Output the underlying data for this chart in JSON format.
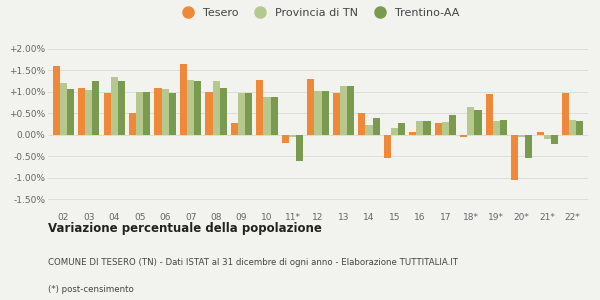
{
  "categories": [
    "02",
    "03",
    "04",
    "05",
    "06",
    "07",
    "08",
    "09",
    "10",
    "11*",
    "12",
    "13",
    "14",
    "15",
    "16",
    "17",
    "18*",
    "19*",
    "20*",
    "21*",
    "22*"
  ],
  "tesero": [
    1.6,
    1.1,
    0.98,
    0.5,
    1.08,
    1.65,
    1.0,
    0.28,
    1.28,
    -0.18,
    1.3,
    0.98,
    0.5,
    -0.55,
    0.07,
    0.28,
    -0.05,
    0.95,
    -1.05,
    0.07,
    0.98
  ],
  "provincia": [
    1.2,
    1.05,
    1.35,
    1.0,
    1.07,
    1.27,
    1.25,
    0.97,
    0.87,
    -0.05,
    1.03,
    1.13,
    0.22,
    0.15,
    0.32,
    0.3,
    0.65,
    0.32,
    -0.05,
    -0.1,
    0.35
  ],
  "trentino": [
    1.07,
    1.25,
    1.25,
    1.0,
    0.97,
    1.25,
    1.1,
    0.97,
    0.87,
    -0.6,
    1.03,
    1.13,
    0.38,
    0.28,
    0.32,
    0.45,
    0.58,
    0.35,
    -0.55,
    -0.22,
    0.33
  ],
  "tesero_color": "#f0883a",
  "provincia_color": "#b5c98e",
  "trentino_color": "#7a9a50",
  "bg_color": "#f2f2ee",
  "grid_color": "#ddddda",
  "title": "Variazione percentuale della popolazione",
  "subtitle": "COMUNE DI TESERO (TN) - Dati ISTAT al 31 dicembre di ogni anno - Elaborazione TUTTITALIA.IT",
  "footnote": "(*) post-censimento",
  "ylim": [
    -1.75,
    2.3
  ],
  "yticks": [
    -1.5,
    -1.0,
    -0.5,
    0.0,
    0.5,
    1.0,
    1.5,
    2.0
  ],
  "ytick_labels": [
    "-1.50%",
    "-1.00%",
    "-0.50%",
    "0.00%",
    "+0.50%",
    "+1.00%",
    "+1.50%",
    "+2.00%"
  ],
  "bar_width": 0.28,
  "figsize": [
    6.0,
    3.0
  ],
  "dpi": 100
}
